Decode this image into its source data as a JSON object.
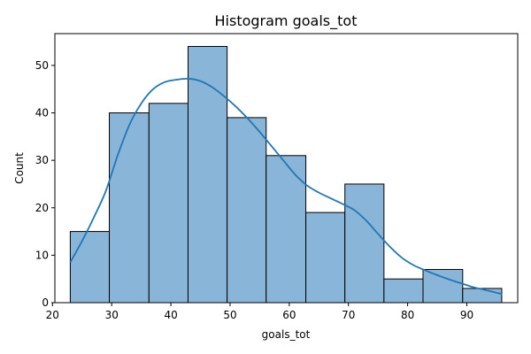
{
  "chart_data": {
    "type": "bar",
    "title": "Histogram goals_tot",
    "xlabel": "goals_tot",
    "ylabel": "Count",
    "xlim": [
      20.4,
      98.6
    ],
    "ylim": [
      0,
      56.7
    ],
    "x_ticks": [
      20,
      30,
      40,
      50,
      60,
      70,
      80,
      90
    ],
    "y_ticks": [
      0,
      10,
      20,
      30,
      40,
      50
    ],
    "grid": false,
    "bins": [
      {
        "start": 23.0,
        "end": 29.6,
        "count": 15
      },
      {
        "start": 29.6,
        "end": 36.3,
        "count": 40
      },
      {
        "start": 36.3,
        "end": 42.9,
        "count": 42
      },
      {
        "start": 42.9,
        "end": 49.5,
        "count": 54
      },
      {
        "start": 49.5,
        "end": 56.1,
        "count": 39
      },
      {
        "start": 56.1,
        "end": 62.8,
        "count": 31
      },
      {
        "start": 62.8,
        "end": 69.4,
        "count": 19
      },
      {
        "start": 69.4,
        "end": 76.0,
        "count": 25
      },
      {
        "start": 76.0,
        "end": 82.6,
        "count": 5
      },
      {
        "start": 82.6,
        "end": 89.3,
        "count": 7
      },
      {
        "start": 89.3,
        "end": 95.9,
        "count": 3
      }
    ],
    "kde": {
      "x": [
        23,
        25,
        27,
        29,
        31,
        33,
        35,
        37,
        39,
        41,
        43,
        45,
        47,
        49,
        51,
        53,
        55,
        57,
        59,
        61,
        63,
        65,
        67,
        69,
        71,
        73,
        75,
        77,
        79,
        81,
        83,
        85,
        87,
        89,
        91,
        93,
        96
      ],
      "y": [
        8.5,
        13,
        18,
        23.5,
        31,
        37.5,
        42,
        45,
        46.5,
        47,
        47.2,
        46.7,
        45.4,
        43.5,
        41.3,
        38.8,
        36,
        33,
        30,
        27,
        24.7,
        23.2,
        22,
        20.8,
        19.5,
        17.3,
        14.5,
        11.8,
        9.5,
        7.9,
        6.8,
        5.8,
        4.9,
        4.1,
        3.3,
        2.7,
        1.8
      ]
    },
    "colors": {
      "bar_fill": "#89b6d8",
      "bar_edge": "#000000",
      "kde_line": "#1f77b4"
    }
  }
}
